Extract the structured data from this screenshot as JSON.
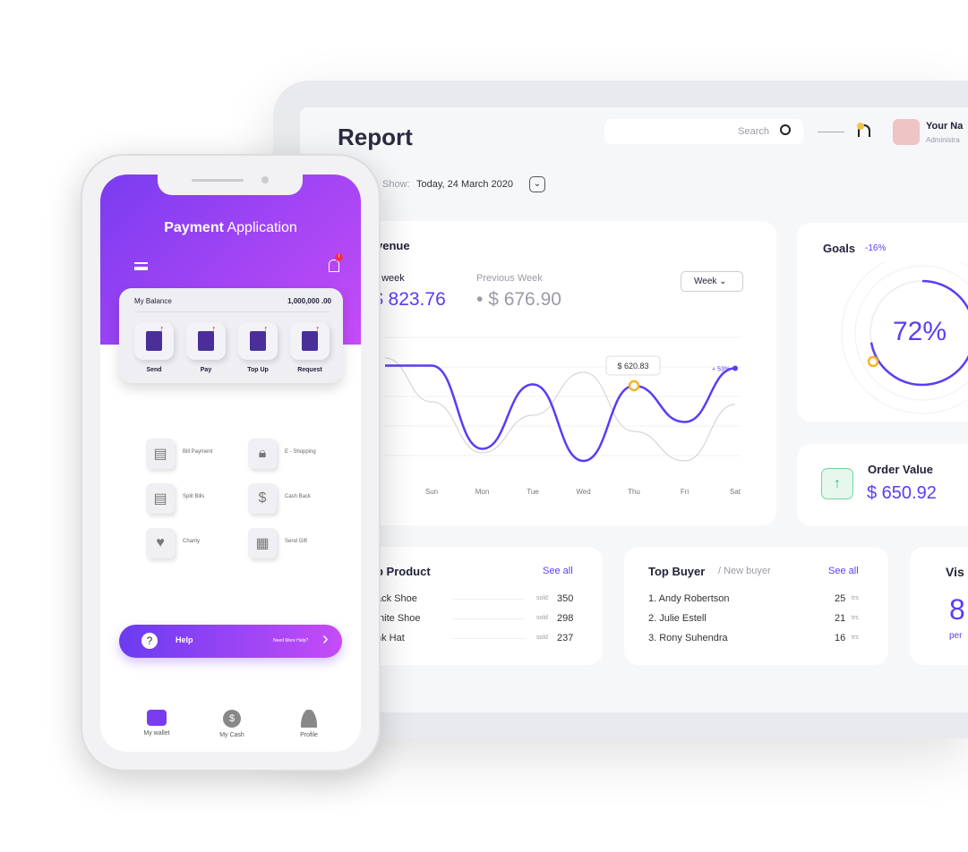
{
  "dashboard": {
    "title": "Report",
    "search_placeholder": "Search",
    "user_name": "Your Na",
    "user_role": "Administra",
    "show_label": "Show:",
    "show_value": "Today, 24 March 2020",
    "revenue": {
      "title": "venue",
      "this_week_label": ": week",
      "this_week_value": "$ 823.76",
      "prev_week_label": "Previous Week",
      "prev_week_value": "$ 676.90",
      "period": "Week",
      "tooltip": "$ 620.83",
      "change": "+ 53%"
    },
    "goals": {
      "title": "Goals",
      "change": "-16%",
      "percent": "72%",
      "progress": 72
    },
    "order_value": {
      "title": "Order Value",
      "value": "$ 650.92"
    },
    "top_product": {
      "title": "p Product",
      "see_all": "See all",
      "sold_label": "sold",
      "items": [
        {
          "name": "ack Shoe",
          "sold": "350"
        },
        {
          "name": "/hite Shoe",
          "sold": "298"
        },
        {
          "name": "nk Hat",
          "sold": "237"
        }
      ]
    },
    "top_buyer": {
      "title": "Top Buyer",
      "subtitle": "/ New buyer",
      "see_all": "See all",
      "unit": "trs",
      "items": [
        {
          "name": "1. Andy Robertson",
          "count": "25"
        },
        {
          "name": "2. Julie Estell",
          "count": "21"
        },
        {
          "name": "3. Rony Suhendra",
          "count": "16"
        }
      ]
    },
    "visitors": {
      "title": "Vis",
      "value": "8",
      "sub": "per"
    }
  },
  "chart_data": {
    "type": "line",
    "categories": [
      "Sun",
      "Mon",
      "Tue",
      "Wed",
      "Thu",
      "Fri",
      "Sat"
    ],
    "series": [
      {
        "values": [
          73,
          11,
          59,
          2,
          58,
          31,
          71
        ],
        "color": "#5b3cf5"
      },
      {
        "values": [
          46,
          8,
          36,
          68,
          24,
          2,
          44
        ],
        "color": "#d6d6da"
      }
    ],
    "highlight": {
      "category": "Thu",
      "label": "$ 620.83"
    },
    "grid": true
  },
  "phone": {
    "title_bold": "Payment",
    "title_light": "Application",
    "balance_label": "My Balance",
    "balance_value": "1,000,000 .00",
    "actions": [
      "Send",
      "Pay",
      "Top Up",
      "Request"
    ],
    "services": [
      "Bill Payment",
      "E - Shopping",
      "Split Bills",
      "Cash Back",
      "Charity",
      "Send Gift"
    ],
    "help_label": "Help",
    "help_sub": "Need More Help?",
    "nav": [
      "My wallet",
      "My Cash",
      "Profile"
    ],
    "notification_badge": "!"
  }
}
